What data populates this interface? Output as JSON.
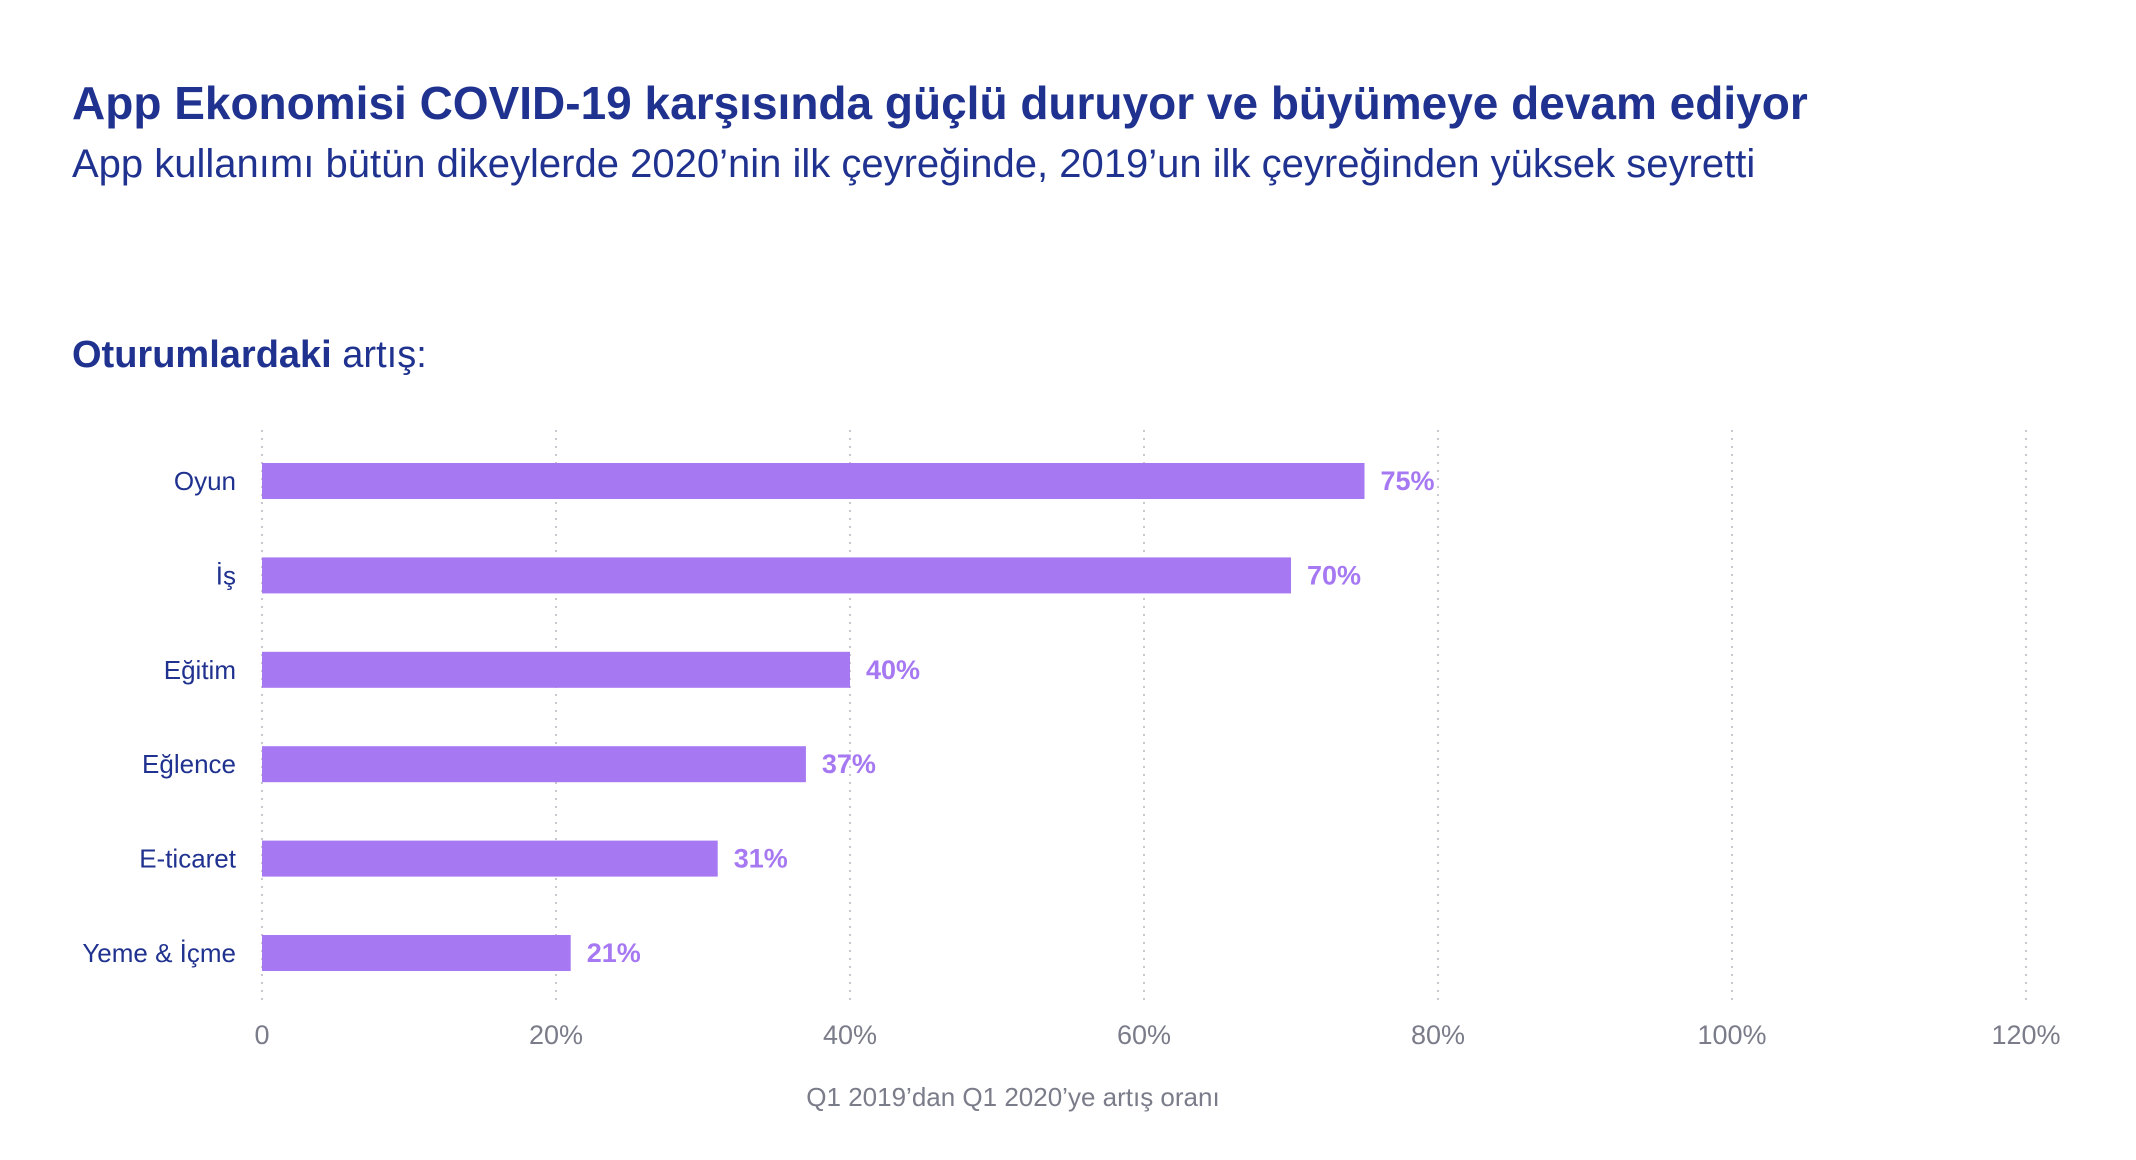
{
  "header": {
    "title": "App Ekonomisi COVID-19 karşısında güçlü duruyor ve büyümeye devam ediyor",
    "subtitle": "App kullanımı bütün dikeylerde 2020’nin ilk çeyreğinde, 2019’un ilk çeyreğinden yüksek seyretti"
  },
  "section": {
    "bold": "Oturumlardaki",
    "rest": " artış:"
  },
  "colors": {
    "bar": "#a678f2",
    "value_label": "#a678f2",
    "heading": "#20328f",
    "grid": "#c8c8d0"
  },
  "chart_data": {
    "type": "bar",
    "orientation": "horizontal",
    "categories": [
      "Oyun",
      "İş",
      "Eğitim",
      "Eğlence",
      "E-ticaret",
      "Yeme & İçme"
    ],
    "values": [
      75,
      70,
      40,
      37,
      31,
      21
    ],
    "value_labels": [
      "75%",
      "70%",
      "40%",
      "37%",
      "31%",
      "21%"
    ],
    "xlim": [
      0,
      120
    ],
    "xticks": [
      0,
      20,
      40,
      60,
      80,
      100,
      120
    ],
    "xtick_labels": [
      "0",
      "20%",
      "40%",
      "60%",
      "80%",
      "100%",
      "120%"
    ],
    "xlabel": "Q1 2019’dan Q1 2020’ye artış oranı",
    "grid": "vertical dotted"
  }
}
